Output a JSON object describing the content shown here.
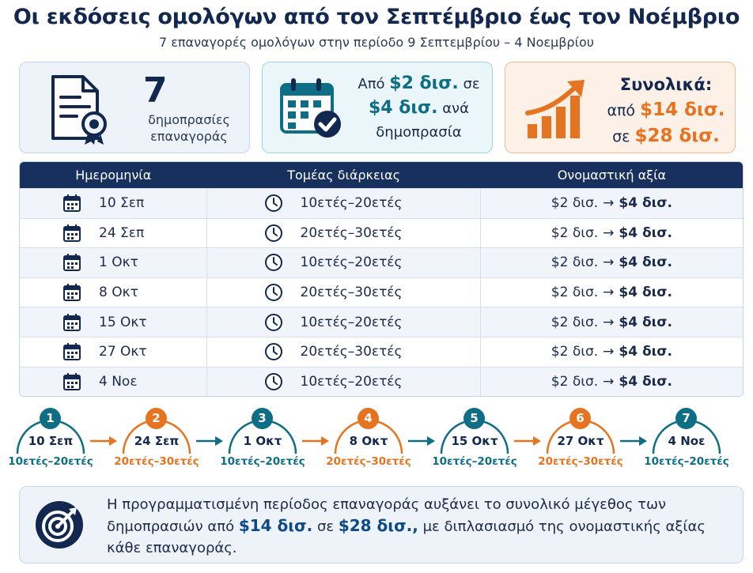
{
  "title": "Οι εκδόσεις ομολόγων από τον Σεπτέμβριο έως τον Νοέμβριο",
  "subtitle": "7 επαναγορές ομολόγων στην περίοδο 9 Σεπτεμβρίου – 4 Νοεμβρίου",
  "cards": {
    "count": {
      "value": "7",
      "label_line1": "δημοπρασίες",
      "label_line2": "επαναγοράς",
      "icon": "certificate-document-icon"
    },
    "per_auction": {
      "prefix": "Από",
      "from": "$2 δισ.",
      "mid": "σε",
      "to": "$4 δισ.",
      "suffix": "ανά",
      "last": "δημοπρασία",
      "icon": "calendar-check-icon"
    },
    "total": {
      "head": "Συνολικά:",
      "prefix": "από",
      "from": "$14 δισ.",
      "mid": "σε",
      "to": "$28 δισ.",
      "icon": "growth-chart-icon"
    }
  },
  "table": {
    "headers": [
      "Ημερομηνία",
      "Τομέας διάρκειας",
      "Ονομαστική αξία"
    ],
    "rows": [
      {
        "date": "10 Σεπ",
        "sector": "10ετές–20ετές",
        "from": "$2 δισ.",
        "to": "$4 δισ."
      },
      {
        "date": "24 Σεπ",
        "sector": "20ετές–30ετές",
        "from": "$2 δισ.",
        "to": "$4 δισ."
      },
      {
        "date": "1 Οκτ",
        "sector": "10ετές–20ετές",
        "from": "$2 δισ.",
        "to": "$4 δισ."
      },
      {
        "date": "8 Οκτ",
        "sector": "20ετές–30ετές",
        "from": "$2 δισ.",
        "to": "$4 δισ."
      },
      {
        "date": "15 Οκτ",
        "sector": "10ετές–20ετές",
        "from": "$2 δισ.",
        "to": "$4 δισ."
      },
      {
        "date": "27 Οκτ",
        "sector": "20ετές–30ετές",
        "from": "$2 δισ.",
        "to": "$4 δισ."
      },
      {
        "date": "4 Νοε",
        "sector": "10ετές–20ετές",
        "from": "$2 δισ.",
        "to": "$4 δισ."
      }
    ]
  },
  "timeline": [
    {
      "num": "1",
      "date": "10 Σεπ",
      "sector": "10ετές–20ετές",
      "color": "#0e6e86"
    },
    {
      "num": "2",
      "date": "24 Σεπ",
      "sector": "20ετές–30ετές",
      "color": "#e6731f"
    },
    {
      "num": "3",
      "date": "1 Οκτ",
      "sector": "10ετές–20ετές",
      "color": "#0e6e86"
    },
    {
      "num": "4",
      "date": "8 Οκτ",
      "sector": "20ετές–30ετές",
      "color": "#e6731f"
    },
    {
      "num": "5",
      "date": "15 Οκτ",
      "sector": "10ετές–20ετές",
      "color": "#0e6e86"
    },
    {
      "num": "6",
      "date": "27 Οκτ",
      "sector": "20ετές–30ετές",
      "color": "#e6731f"
    },
    {
      "num": "7",
      "date": "4 Νοε",
      "sector": "10ετές–20ετές",
      "color": "#0e6e86"
    }
  ],
  "note": {
    "icon": "target-icon",
    "part1": "Η προγραμματισμένη περίοδος επαναγοράς αυξάνει το συνολικό μέγεθος των δημοπρασιών από",
    "from": "$14 δισ.",
    "mid": "σε",
    "to": "$28 δισ.,",
    "part2": "με διπλασιασμό της ονομαστικής αξίας κάθε επαναγοράς."
  },
  "colors": {
    "navy": "#13284f",
    "teal": "#0e6e86",
    "orange": "#e6731f"
  }
}
